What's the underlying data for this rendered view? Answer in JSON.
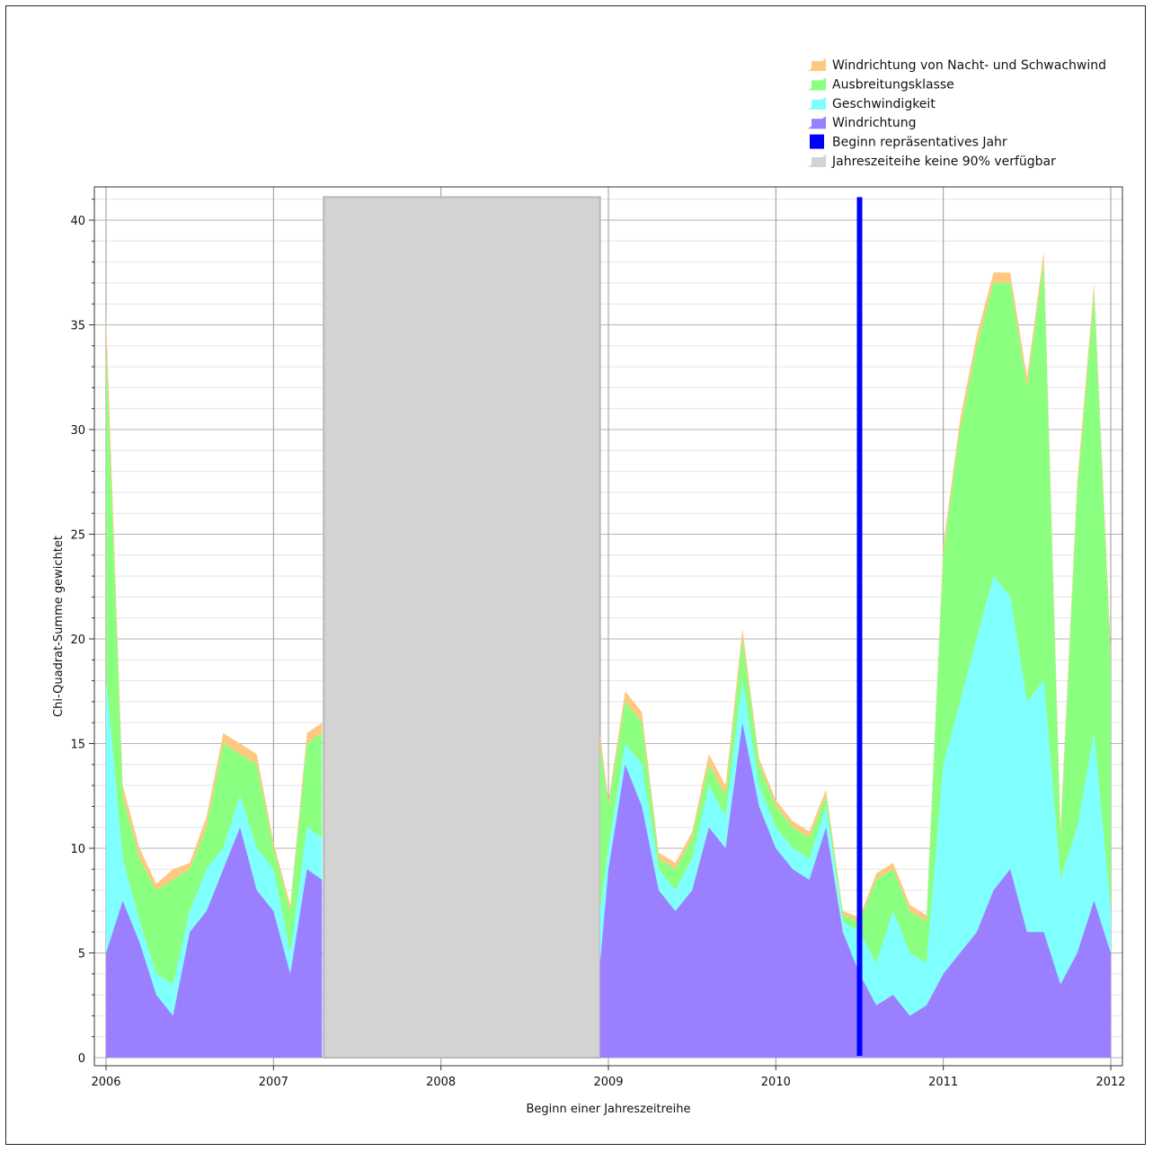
{
  "chart_data": {
    "type": "area",
    "stacked": true,
    "xlabel": "Beginn einer Jahreszeitreihe",
    "ylabel": "Chi-Quadrat-Summe gewichtet",
    "xlim": [
      2006,
      2012
    ],
    "ylim": [
      0,
      41
    ],
    "x_ticks": [
      "2006",
      "2007",
      "2008",
      "2009",
      "2010",
      "2011",
      "2012"
    ],
    "y_ticks": [
      "0",
      "5",
      "10",
      "15",
      "20",
      "25",
      "30",
      "35",
      "40"
    ],
    "grid": true,
    "legend_position": "top-right",
    "x": [
      2006.0,
      2006.1,
      2006.2,
      2006.3,
      2006.4,
      2006.5,
      2006.6,
      2006.7,
      2006.8,
      2006.9,
      2007.0,
      2007.1,
      2007.2,
      2007.29,
      2008.95,
      2009.0,
      2009.1,
      2009.2,
      2009.3,
      2009.4,
      2009.5,
      2009.6,
      2009.7,
      2009.8,
      2009.9,
      2010.0,
      2010.1,
      2010.2,
      2010.3,
      2010.4,
      2010.5,
      2010.6,
      2010.7,
      2010.8,
      2010.9,
      2011.0,
      2011.1,
      2011.2,
      2011.3,
      2011.4,
      2011.5,
      2011.6,
      2011.7,
      2011.8,
      2011.9,
      2012.0
    ],
    "series": [
      {
        "name": "Windrichtung",
        "color": "#9a80ff",
        "values": [
          5,
          7.5,
          5.5,
          3,
          2,
          6,
          7,
          9,
          11,
          8,
          7,
          4,
          9,
          8.5,
          4.5,
          9,
          14,
          12,
          8,
          7,
          8,
          11,
          10,
          16,
          12,
          10,
          9,
          8.5,
          11,
          6,
          4,
          2.5,
          3,
          2,
          2.5,
          4,
          5,
          6,
          8,
          9,
          6,
          6,
          3.5,
          5,
          7.5,
          5
        ]
      },
      {
        "name": "Geschwindigkeit",
        "color": "#80ffff",
        "values": [
          13,
          2,
          1,
          1,
          1.5,
          1,
          2,
          1,
          1.5,
          2,
          2,
          1,
          2,
          2,
          2.5,
          1,
          1,
          2,
          1,
          1,
          1.5,
          2,
          1.5,
          2,
          1,
          1,
          1,
          1,
          1,
          0.5,
          2,
          2,
          4,
          3,
          2,
          10,
          12,
          14,
          15,
          13,
          11,
          12,
          5,
          6,
          8,
          2
        ]
      },
      {
        "name": "Ausbreitungsklasse",
        "color": "#8aff80",
        "values": [
          16,
          3,
          3,
          4,
          5,
          2,
          2,
          5,
          2,
          4,
          1,
          2,
          4,
          5,
          8,
          2,
          2,
          2,
          0.5,
          1,
          1,
          1,
          1,
          2,
          1,
          1,
          1,
          1,
          0.5,
          0.3,
          0.5,
          4,
          2,
          2,
          2,
          10,
          13,
          14,
          14,
          15,
          15,
          20,
          2,
          16,
          21,
          12
        ]
      },
      {
        "name": "Windrichtung von Nacht- und Schwachwind",
        "color": "#ffc880",
        "values": [
          1.5,
          0.5,
          0.5,
          0.3,
          0.5,
          0.3,
          0.5,
          0.5,
          0.5,
          0.5,
          0.3,
          0.3,
          0.5,
          0.5,
          0.5,
          0.3,
          0.5,
          0.5,
          0.3,
          0.3,
          0.3,
          0.5,
          0.5,
          0.5,
          0.3,
          0.3,
          0.3,
          0.3,
          0.3,
          0.2,
          0.2,
          0.3,
          0.3,
          0.3,
          0.3,
          0.5,
          0.5,
          0.5,
          0.5,
          0.5,
          0.5,
          0.5,
          0.5,
          0.5,
          0.5,
          0.5
        ]
      }
    ],
    "gap_region": {
      "label": "Jahreszeiteihe keine 90% verfügbar",
      "color": "#d3d3d3",
      "x_start": 2007.3,
      "x_end": 2008.95,
      "y_top": 41.1
    },
    "marker_line": {
      "label": "Beginn repräsentatives Jahr",
      "color": "#0000ff",
      "x": 2010.5,
      "y_top": 41.1
    },
    "legend": [
      {
        "label": "Windrichtung von Nacht- und Schwachwind",
        "color": "#ffc880",
        "kind": "area"
      },
      {
        "label": "Ausbreitungsklasse",
        "color": "#8aff80",
        "kind": "area"
      },
      {
        "label": "Geschwindigkeit",
        "color": "#80ffff",
        "kind": "area"
      },
      {
        "label": "Windrichtung",
        "color": "#9a80ff",
        "kind": "area"
      },
      {
        "label": "Beginn repräsentatives Jahr",
        "color": "#0000ff",
        "kind": "box"
      },
      {
        "label": "Jahreszeiteihe keine 90% verfügbar",
        "color": "#d3d3d3",
        "kind": "area"
      }
    ]
  }
}
